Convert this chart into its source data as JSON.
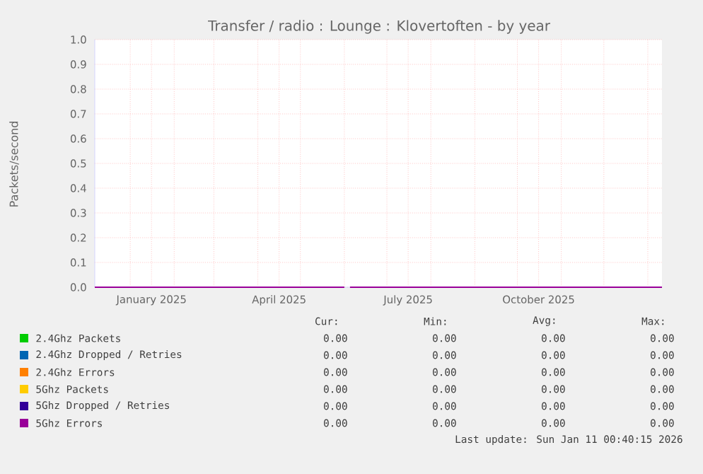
{
  "chart_data": {
    "type": "line",
    "title": "Transfer / radio : Lounge  : Klovertoften - by year",
    "ylabel": "Packets/second",
    "x": [
      "2024-12-07",
      "2025-06-01",
      "2025-06-03",
      "2025-06-05",
      "2026-01-11"
    ],
    "series": [
      {
        "name": "2.4Ghz Packets",
        "color": "#00cc00",
        "values": [
          null,
          null,
          null,
          null,
          null
        ]
      },
      {
        "name": "2.4Ghz Dropped / Retries",
        "color": "#0066b3",
        "values": [
          null,
          null,
          null,
          null,
          null
        ]
      },
      {
        "name": "2.4Ghz Errors",
        "color": "#ff8000",
        "values": [
          null,
          null,
          null,
          null,
          null
        ]
      },
      {
        "name": "5Ghz Packets",
        "color": "#ffcc00",
        "values": [
          null,
          null,
          null,
          null,
          null
        ]
      },
      {
        "name": "5Ghz Dropped / Retries",
        "color": "#330099",
        "values": [
          null,
          null,
          null,
          null,
          null
        ]
      },
      {
        "name": "5Ghz Errors",
        "color": "#990099",
        "values": [
          0,
          0,
          null,
          0,
          0
        ]
      }
    ],
    "xlim": [
      "2024-12-07",
      "2026-01-11"
    ],
    "xticks": [
      {
        "value": "2025-01-01",
        "label": null
      },
      {
        "value": "2025-01-16",
        "label": "January 2025"
      },
      {
        "value": "2025-02-01",
        "label": null
      },
      {
        "value": "2025-03-01",
        "label": null
      },
      {
        "value": "2025-04-01",
        "label": null
      },
      {
        "value": "2025-04-16",
        "label": "April 2025"
      },
      {
        "value": "2025-05-01",
        "label": null
      },
      {
        "value": "2025-06-01",
        "label": null
      },
      {
        "value": "2025-07-01",
        "label": null
      },
      {
        "value": "2025-07-16",
        "label": "July 2025"
      },
      {
        "value": "2025-08-01",
        "label": null
      },
      {
        "value": "2025-09-01",
        "label": null
      },
      {
        "value": "2025-10-01",
        "label": null
      },
      {
        "value": "2025-10-16",
        "label": "October 2025"
      },
      {
        "value": "2025-11-01",
        "label": null
      },
      {
        "value": "2025-12-01",
        "label": null
      },
      {
        "value": "2026-01-01",
        "label": null
      }
    ],
    "ylim": [
      0,
      1
    ],
    "yticks": [
      {
        "value": 0,
        "label": "0.0"
      },
      0.1,
      0.2,
      0.3,
      0.4,
      0.5,
      0.6,
      0.7,
      0.8,
      0.9,
      {
        "value": 1,
        "label": "1.0"
      }
    ],
    "grid": true,
    "legend": "bottom",
    "marker": "none",
    "line_style": "solid",
    "annotations": [
      "Cur:",
      "Min:",
      "Avg:",
      "Max:",
      "0.00",
      "0.00",
      "0.00",
      "0.00",
      "0.00",
      "0.00",
      "0.00",
      "0.00",
      "0.00",
      "0.00",
      "0.00",
      "0.00",
      "0.00",
      "0.00",
      "0.00",
      "0.00",
      "0.00",
      "0.00",
      "0.00",
      "0.00",
      "0.00",
      "0.00",
      "0.00",
      "0.00",
      "Last update: Sun Jan 11 00:40:15 2026"
    ]
  }
}
